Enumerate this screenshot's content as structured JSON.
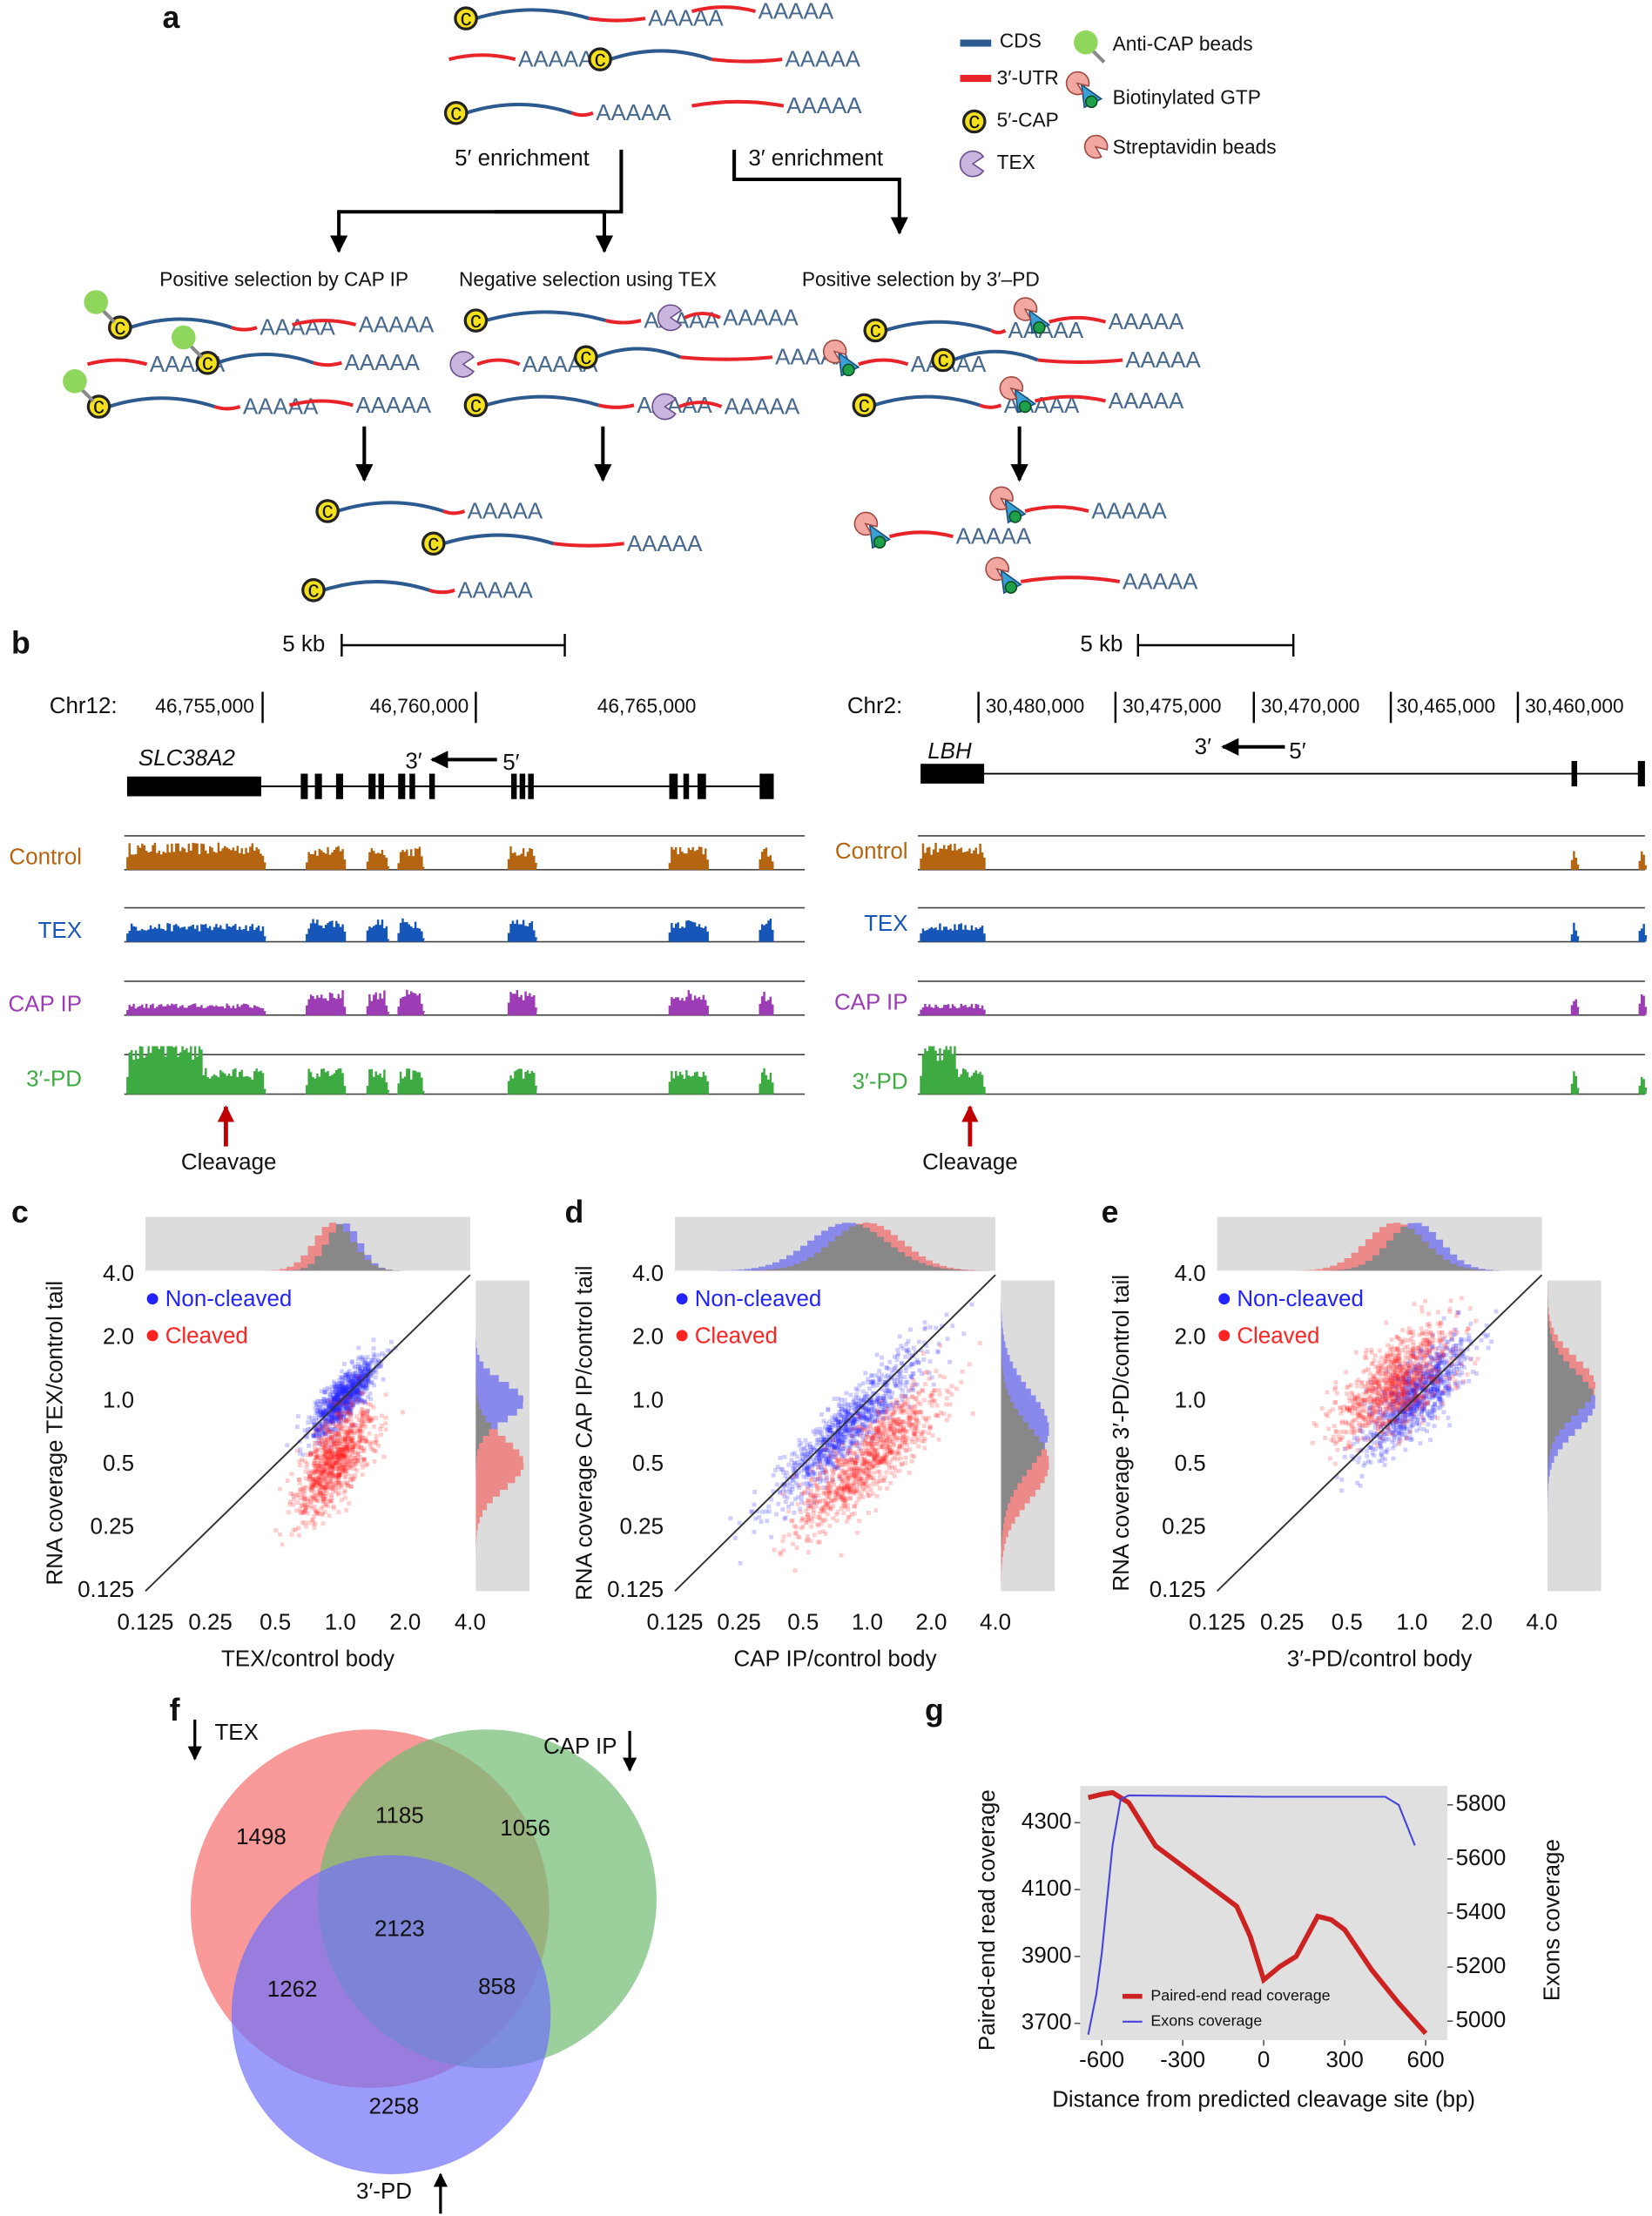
{
  "figure": {
    "panel_labels": [
      "a",
      "b"
    ],
    "panel_a": {
      "legend": [
        "CDS",
        "3′-UTR",
        "5′-CAP",
        "TEX",
        "Anti-CAP beads",
        "Biotinylated GTP",
        "Streptavidin beads"
      ],
      "branches": [
        "5′ enrichment",
        "3′ enrichment"
      ],
      "selections": [
        "Positive selection by CAP IP",
        "Negative selection using TEX",
        "Positive selection by 3′–PD"
      ],
      "poly_a": "AAAAA",
      "cap_letter": "c"
    },
    "panel_b": {
      "arrow_label": "Cleavage",
      "tracks": [
        "Control",
        "TEX",
        "CAP IP",
        "3′-PD"
      ],
      "loci": [
        {
          "scale_label": "5 kb",
          "chromosome": "Chr12:",
          "positions": [
            "46,755,000",
            "46,760,000",
            "46,765,000"
          ],
          "gene": "SLC38A2",
          "strand": [
            "3′",
            "5′"
          ]
        },
        {
          "scale_label": "5 kb",
          "chromosome": "Chr2:",
          "positions": [
            "30,480,000",
            "30,475,000",
            "30,470,000",
            "30,465,000",
            "30,460,000"
          ],
          "gene": "LBH",
          "strand": [
            "3′",
            "5′"
          ]
        }
      ]
    }
  },
  "chart_data": [
    {
      "type": "scatter",
      "label": "c",
      "xlabel": "TEX/control body",
      "ylabel": "RNA coverage TEX/control tail",
      "log_scale": true,
      "xlim": [
        0.125,
        4
      ],
      "ylim": [
        0.125,
        4
      ],
      "xticks": [
        0.125,
        0.25,
        0.5,
        {
          "value": 1,
          "label": "1.0"
        },
        {
          "value": 2,
          "label": "2.0"
        },
        {
          "value": 4,
          "label": "4.0"
        }
      ],
      "yticks": [
        0.125,
        0.25,
        0.5,
        {
          "value": 1,
          "label": "1.0"
        },
        {
          "value": 2,
          "label": "2.0"
        },
        {
          "value": 4,
          "label": "4.0"
        }
      ],
      "series": [
        {
          "name": "Non-cleaved",
          "color": "#2323ff"
        },
        {
          "name": "Cleaved",
          "color": "#ff2323"
        }
      ]
    },
    {
      "type": "scatter",
      "label": "d",
      "xlabel": "CAP IP/control body",
      "ylabel": "RNA coverage CAP IP/control tail",
      "log_scale": true,
      "xlim": [
        0.125,
        4
      ],
      "ylim": [
        0.125,
        4
      ],
      "xticks": [
        0.125,
        0.25,
        0.5,
        {
          "value": 1,
          "label": "1.0"
        },
        {
          "value": 2,
          "label": "2.0"
        },
        {
          "value": 4,
          "label": "4.0"
        }
      ],
      "yticks": [
        0.125,
        0.25,
        0.5,
        {
          "value": 1,
          "label": "1.0"
        },
        {
          "value": 2,
          "label": "2.0"
        },
        {
          "value": 4,
          "label": "4.0"
        }
      ],
      "series": [
        {
          "name": "Non-cleaved",
          "color": "#2323ff"
        },
        {
          "name": "Cleaved",
          "color": "#ff2323"
        }
      ]
    },
    {
      "type": "scatter",
      "label": "e",
      "xlabel": "3′-PD/control body",
      "ylabel": "RNA coverage 3′-PD/control tail",
      "log_scale": true,
      "xlim": [
        0.125,
        4
      ],
      "ylim": [
        0.125,
        4
      ],
      "xticks": [
        0.125,
        0.25,
        0.5,
        {
          "value": 1,
          "label": "1.0"
        },
        {
          "value": 2,
          "label": "2.0"
        },
        {
          "value": 4,
          "label": "4.0"
        }
      ],
      "yticks": [
        0.125,
        0.25,
        0.5,
        {
          "value": 1,
          "label": "1.0"
        },
        {
          "value": 2,
          "label": "2.0"
        },
        {
          "value": 4,
          "label": "4.0"
        }
      ],
      "series": [
        {
          "name": "Non-cleaved",
          "color": "#2323ff"
        },
        {
          "name": "Cleaved",
          "color": "#ff2323"
        }
      ]
    },
    {
      "type": "venn",
      "label": "f",
      "sets": [
        "TEX",
        "CAP IP",
        "3′-PD"
      ],
      "values": [
        1498,
        1185,
        1056,
        1262,
        2123,
        858,
        2258
      ],
      "colors": [
        "#f66e6e",
        "#70bb70",
        "#7070fb"
      ]
    },
    {
      "type": "line",
      "label": "g",
      "xlabel": "Distance from predicted cleavage site (bp)",
      "ylabel": "Paired-end read coverage",
      "y2label": "Exons coverage",
      "xlim": [
        -680,
        680
      ],
      "ylim": [
        3650,
        4410
      ],
      "y2lim": [
        4930,
        5870
      ],
      "xticks": [
        -600,
        -300,
        0,
        300,
        600
      ],
      "yticks": [
        3700,
        3900,
        4100,
        4300
      ],
      "y2ticks": [
        5000,
        5200,
        5400,
        5600,
        5800
      ],
      "legend": "lower left",
      "series": [
        {
          "name": "Paired-end read coverage",
          "color": "#cc2222",
          "x": [
            -650,
            -600,
            -560,
            -500,
            -400,
            -300,
            -200,
            -100,
            -50,
            0,
            60,
            120,
            200,
            250,
            300,
            400,
            500,
            600
          ],
          "values": [
            4375,
            4385,
            4390,
            4360,
            4230,
            4170,
            4110,
            4050,
            3960,
            3830,
            3870,
            3900,
            4020,
            4010,
            3980,
            3860,
            3760,
            3670
          ]
        },
        {
          "name": "Exons coverage",
          "color": "#4444dd",
          "axis": "y2",
          "x": [
            -650,
            -620,
            -600,
            -580,
            -560,
            -530,
            -500,
            0,
            450,
            500,
            540,
            560
          ],
          "values": [
            4950,
            5100,
            5250,
            5450,
            5650,
            5820,
            5835,
            5830,
            5830,
            5800,
            5700,
            5650
          ]
        }
      ]
    }
  ]
}
